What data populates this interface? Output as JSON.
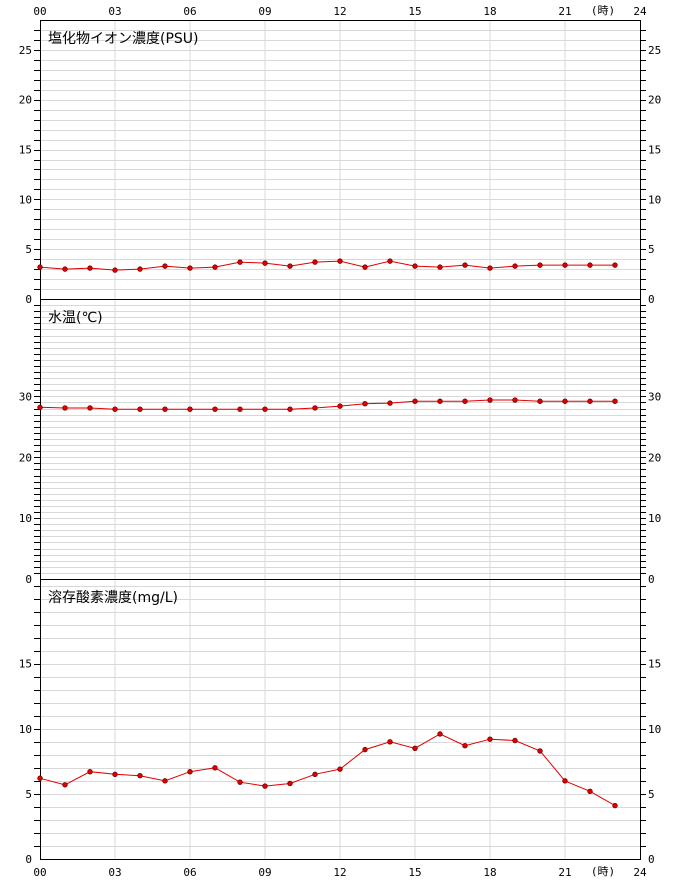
{
  "x_axis": {
    "tick_labels": [
      "00",
      "03",
      "06",
      "09",
      "12",
      "15",
      "18",
      "21",
      "24"
    ],
    "unit_label": "(時)"
  },
  "colors": {
    "series": "#e00000",
    "grid": "#d8d8d8",
    "axis": "#000000"
  },
  "chart_data": [
    {
      "type": "line",
      "title": "塩化物イオン濃度(PSU)",
      "x": [
        0,
        1,
        2,
        3,
        4,
        5,
        6,
        7,
        8,
        9,
        10,
        11,
        12,
        13,
        14,
        15,
        16,
        17,
        18,
        19,
        20,
        21,
        22,
        23
      ],
      "xlim": [
        0,
        24
      ],
      "ylim": [
        0,
        28
      ],
      "yticks": [
        0,
        5,
        10,
        15,
        20,
        25
      ],
      "values": [
        3.2,
        3.0,
        3.1,
        2.9,
        3.0,
        3.3,
        3.1,
        3.2,
        3.7,
        3.6,
        3.3,
        3.7,
        3.8,
        3.2,
        3.8,
        3.3,
        3.2,
        3.4,
        3.1,
        3.3,
        3.4,
        3.4,
        3.4,
        3.4
      ],
      "grid": true
    },
    {
      "type": "line",
      "title": "水温(℃)",
      "x": [
        0,
        1,
        2,
        3,
        4,
        5,
        6,
        7,
        8,
        9,
        10,
        11,
        12,
        13,
        14,
        15,
        16,
        17,
        18,
        19,
        20,
        21,
        22,
        23
      ],
      "xlim": [
        0,
        24
      ],
      "ylim": [
        0,
        46
      ],
      "yticks": [
        0,
        10,
        20,
        30
      ],
      "values": [
        28.2,
        28.1,
        28.1,
        27.9,
        27.9,
        27.9,
        27.9,
        27.9,
        27.9,
        27.9,
        27.9,
        28.1,
        28.4,
        28.8,
        28.9,
        29.2,
        29.2,
        29.2,
        29.4,
        29.4,
        29.2,
        29.2,
        29.2,
        29.2
      ],
      "grid": true
    },
    {
      "type": "line",
      "title": "溶存酸素濃度(mg/L)",
      "x": [
        0,
        1,
        2,
        3,
        4,
        5,
        6,
        7,
        8,
        9,
        10,
        11,
        12,
        13,
        14,
        15,
        16,
        17,
        18,
        19,
        20,
        21,
        22,
        23
      ],
      "xlim": [
        0,
        24
      ],
      "ylim": [
        0,
        21.5
      ],
      "yticks": [
        0,
        5,
        10,
        15
      ],
      "values": [
        6.2,
        5.7,
        6.7,
        6.5,
        6.4,
        6.0,
        6.7,
        7.0,
        5.9,
        5.6,
        5.8,
        6.5,
        6.9,
        8.4,
        9.0,
        8.5,
        9.6,
        8.7,
        9.2,
        9.1,
        8.3,
        6.0,
        5.2,
        4.1
      ],
      "grid": true
    }
  ]
}
